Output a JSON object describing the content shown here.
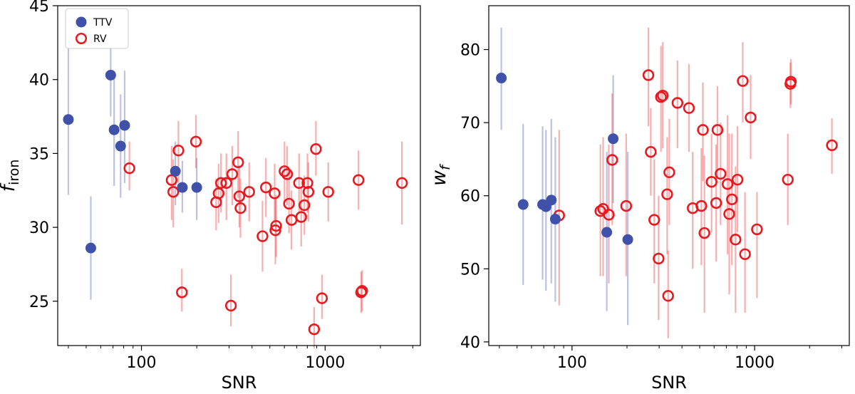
{
  "chart_data": [
    {
      "type": "scatter",
      "xscale": "log",
      "xlim": [
        35,
        3300
      ],
      "ylim": [
        22,
        45
      ],
      "xlabel": "SNR",
      "ylabel": "f_iron",
      "ylabel_main": "f",
      "ylabel_sub": "iron",
      "xticks": [
        100,
        1000
      ],
      "xtick_labels": [
        "100",
        "1000"
      ],
      "yticks": [
        25,
        30,
        35,
        40,
        45
      ],
      "ytick_labels": [
        "25",
        "30",
        "35",
        "40",
        "45"
      ],
      "legend": {
        "placement": "top-left",
        "entries": [
          "TTV",
          "RV"
        ]
      },
      "series": [
        {
          "name": "TTV",
          "marker": "filled-circle",
          "color": "#3f51a8",
          "points": [
            {
              "x": 40,
              "y": 37.3,
              "lo": 32.2,
              "hi": 42.5
            },
            {
              "x": 53,
              "y": 28.6,
              "lo": 25.1,
              "hi": 32.1
            },
            {
              "x": 68,
              "y": 40.3,
              "lo": 37.5,
              "hi": 43.0
            },
            {
              "x": 71,
              "y": 36.6,
              "lo": 32.8,
              "hi": 40.5
            },
            {
              "x": 77,
              "y": 35.5,
              "lo": 32.0,
              "hi": 39.0
            },
            {
              "x": 81,
              "y": 36.9,
              "lo": 33.0,
              "hi": 40.6
            },
            {
              "x": 153,
              "y": 33.8,
              "lo": 31.5,
              "hi": 35.8
            },
            {
              "x": 167,
              "y": 32.7,
              "lo": 31.0,
              "hi": 34.5
            },
            {
              "x": 200,
              "y": 32.7,
              "lo": 30.5,
              "hi": 34.7
            }
          ]
        },
        {
          "name": "RV",
          "marker": "open-circle",
          "color": "#e8191e",
          "points": [
            {
              "x": 86,
              "y": 34.0,
              "lo": 32.5,
              "hi": 35.8
            },
            {
              "x": 146,
              "y": 33.2,
              "lo": 30.5,
              "hi": 35.5
            },
            {
              "x": 149,
              "y": 32.4,
              "lo": 30.0,
              "hi": 34.6
            },
            {
              "x": 159,
              "y": 35.2,
              "lo": 33.0,
              "hi": 37.2
            },
            {
              "x": 166,
              "y": 25.6,
              "lo": 24.3,
              "hi": 27.2
            },
            {
              "x": 198,
              "y": 35.8,
              "lo": 34.0,
              "hi": 37.6
            },
            {
              "x": 255,
              "y": 31.7,
              "lo": 29.8,
              "hi": 33.3
            },
            {
              "x": 263,
              "y": 32.3,
              "lo": 30.3,
              "hi": 34.3
            },
            {
              "x": 271,
              "y": 33.0,
              "lo": 31.0,
              "hi": 35.0
            },
            {
              "x": 290,
              "y": 33.0,
              "lo": 30.5,
              "hi": 35.0
            },
            {
              "x": 307,
              "y": 24.7,
              "lo": 23.3,
              "hi": 26.8
            },
            {
              "x": 312,
              "y": 33.6,
              "lo": 31.5,
              "hi": 35.5
            },
            {
              "x": 336,
              "y": 34.4,
              "lo": 32.0,
              "hi": 36.5
            },
            {
              "x": 341,
              "y": 32.1,
              "lo": 30.0,
              "hi": 34.2
            },
            {
              "x": 346,
              "y": 31.3,
              "lo": 29.3,
              "hi": 33.3
            },
            {
              "x": 386,
              "y": 32.4,
              "lo": 30.4,
              "hi": 34.4
            },
            {
              "x": 456,
              "y": 29.4,
              "lo": 27.0,
              "hi": 31.8
            },
            {
              "x": 476,
              "y": 32.7,
              "lo": 30.7,
              "hi": 34.7
            },
            {
              "x": 531,
              "y": 32.3,
              "lo": 30.3,
              "hi": 34.3
            },
            {
              "x": 536,
              "y": 29.8,
              "lo": 27.5,
              "hi": 32.0
            },
            {
              "x": 541,
              "y": 30.1,
              "lo": 28.0,
              "hi": 32.2
            },
            {
              "x": 601,
              "y": 33.8,
              "lo": 31.7,
              "hi": 35.8
            },
            {
              "x": 621,
              "y": 33.6,
              "lo": 31.5,
              "hi": 35.5
            },
            {
              "x": 636,
              "y": 31.6,
              "lo": 29.6,
              "hi": 33.6
            },
            {
              "x": 656,
              "y": 30.5,
              "lo": 28.5,
              "hi": 32.5
            },
            {
              "x": 721,
              "y": 33.0,
              "lo": 31.0,
              "hi": 35.0
            },
            {
              "x": 741,
              "y": 30.7,
              "lo": 28.7,
              "hi": 32.7
            },
            {
              "x": 771,
              "y": 31.5,
              "lo": 29.5,
              "hi": 33.5
            },
            {
              "x": 801,
              "y": 33.0,
              "lo": 31.0,
              "hi": 35.0
            },
            {
              "x": 811,
              "y": 32.4,
              "lo": 30.4,
              "hi": 34.4
            },
            {
              "x": 871,
              "y": 23.1,
              "lo": 21.8,
              "hi": 24.6
            },
            {
              "x": 891,
              "y": 35.3,
              "lo": 33.5,
              "hi": 37.2
            },
            {
              "x": 961,
              "y": 25.2,
              "lo": 23.8,
              "hi": 26.8
            },
            {
              "x": 1040,
              "y": 32.4,
              "lo": 30.4,
              "hi": 34.4
            },
            {
              "x": 1520,
              "y": 33.2,
              "lo": 31.2,
              "hi": 35.2
            },
            {
              "x": 1570,
              "y": 25.6,
              "lo": 24.2,
              "hi": 27.0
            },
            {
              "x": 1590,
              "y": 25.7,
              "lo": 24.3,
              "hi": 27.1
            },
            {
              "x": 2620,
              "y": 33.0,
              "lo": 30.2,
              "hi": 35.8
            }
          ]
        }
      ]
    },
    {
      "type": "scatter",
      "xscale": "log",
      "xlim": [
        35,
        3300
      ],
      "ylim": [
        39.5,
        86
      ],
      "xlabel": "SNR",
      "ylabel": "w_f",
      "ylabel_main": "w",
      "ylabel_sub": "f",
      "xticks": [
        100,
        1000
      ],
      "xtick_labels": [
        "100",
        "1000"
      ],
      "yticks": [
        40,
        50,
        60,
        70,
        80
      ],
      "ytick_labels": [
        "40",
        "50",
        "60",
        "70",
        "80"
      ],
      "series": [
        {
          "name": "TTV",
          "marker": "filled-circle",
          "color": "#3f51a8",
          "points": [
            {
              "x": 41,
              "y": 76.1,
              "lo": 69.0,
              "hi": 83.0
            },
            {
              "x": 54,
              "y": 58.8,
              "lo": 47.8,
              "hi": 69.8
            },
            {
              "x": 69,
              "y": 58.8,
              "lo": 48.5,
              "hi": 69.5
            },
            {
              "x": 72,
              "y": 58.5,
              "lo": 47.0,
              "hi": 69.0
            },
            {
              "x": 77,
              "y": 59.4,
              "lo": 48.0,
              "hi": 70.5
            },
            {
              "x": 81,
              "y": 56.8,
              "lo": 45.5,
              "hi": 68.0
            },
            {
              "x": 155,
              "y": 55.0,
              "lo": 44.2,
              "hi": 66.0
            },
            {
              "x": 168,
              "y": 67.8,
              "lo": 59.0,
              "hi": 76.5
            },
            {
              "x": 202,
              "y": 54.0,
              "lo": 42.3,
              "hi": 66.0
            }
          ]
        },
        {
          "name": "RV",
          "marker": "open-circle",
          "color": "#e8191e",
          "points": [
            {
              "x": 85,
              "y": 57.3,
              "lo": 45.0,
              "hi": 69.0
            },
            {
              "x": 143,
              "y": 57.9,
              "lo": 49.0,
              "hi": 67.0
            },
            {
              "x": 148,
              "y": 58.2,
              "lo": 49.0,
              "hi": 68.0
            },
            {
              "x": 159,
              "y": 57.4,
              "lo": 48.0,
              "hi": 67.0
            },
            {
              "x": 166,
              "y": 64.9,
              "lo": 56.0,
              "hi": 74.0
            },
            {
              "x": 198,
              "y": 58.6,
              "lo": 49.0,
              "hi": 68.5
            },
            {
              "x": 262,
              "y": 76.5,
              "lo": 69.5,
              "hi": 83.0
            },
            {
              "x": 270,
              "y": 66.0,
              "lo": 60.0,
              "hi": 72.0
            },
            {
              "x": 282,
              "y": 56.7,
              "lo": 48.0,
              "hi": 65.0
            },
            {
              "x": 298,
              "y": 51.4,
              "lo": 43.0,
              "hi": 60.0
            },
            {
              "x": 307,
              "y": 73.5,
              "lo": 66.0,
              "hi": 80.5
            },
            {
              "x": 314,
              "y": 73.7,
              "lo": 66.5,
              "hi": 81.0
            },
            {
              "x": 332,
              "y": 60.2,
              "lo": 52.0,
              "hi": 68.0
            },
            {
              "x": 336,
              "y": 46.3,
              "lo": 40.5,
              "hi": 52.5
            },
            {
              "x": 341,
              "y": 63.2,
              "lo": 56.0,
              "hi": 70.5
            },
            {
              "x": 378,
              "y": 72.7,
              "lo": 66.5,
              "hi": 78.5
            },
            {
              "x": 437,
              "y": 72.0,
              "lo": 66.0,
              "hi": 78.0
            },
            {
              "x": 458,
              "y": 58.3,
              "lo": 50.0,
              "hi": 66.0
            },
            {
              "x": 511,
              "y": 58.6,
              "lo": 50.5,
              "hi": 66.5
            },
            {
              "x": 521,
              "y": 69.0,
              "lo": 62.0,
              "hi": 75.5
            },
            {
              "x": 531,
              "y": 54.9,
              "lo": 44.0,
              "hi": 65.5
            },
            {
              "x": 581,
              "y": 61.9,
              "lo": 55.0,
              "hi": 68.5
            },
            {
              "x": 616,
              "y": 59.0,
              "lo": 51.0,
              "hi": 67.0
            },
            {
              "x": 626,
              "y": 69.0,
              "lo": 62.5,
              "hi": 75.0
            },
            {
              "x": 651,
              "y": 63.0,
              "lo": 56.0,
              "hi": 70.0
            },
            {
              "x": 711,
              "y": 61.6,
              "lo": 52.0,
              "hi": 71.0
            },
            {
              "x": 726,
              "y": 57.5,
              "lo": 46.5,
              "hi": 68.5
            },
            {
              "x": 751,
              "y": 59.5,
              "lo": 50.5,
              "hi": 68.5
            },
            {
              "x": 786,
              "y": 54.0,
              "lo": 44.0,
              "hi": 64.0
            },
            {
              "x": 806,
              "y": 62.2,
              "lo": 55.0,
              "hi": 69.5
            },
            {
              "x": 861,
              "y": 75.7,
              "lo": 70.0,
              "hi": 81.0
            },
            {
              "x": 886,
              "y": 52.0,
              "lo": 44.0,
              "hi": 60.5
            },
            {
              "x": 951,
              "y": 70.7,
              "lo": 65.0,
              "hi": 76.5
            },
            {
              "x": 1030,
              "y": 55.4,
              "lo": 46.0,
              "hi": 60.5
            },
            {
              "x": 1520,
              "y": 62.2,
              "lo": 56.0,
              "hi": 68.5
            },
            {
              "x": 1570,
              "y": 75.3,
              "lo": 72.0,
              "hi": 78.2
            },
            {
              "x": 1580,
              "y": 75.6,
              "lo": 72.5,
              "hi": 78.7
            },
            {
              "x": 2650,
              "y": 66.9,
              "lo": 63.0,
              "hi": 70.6
            }
          ]
        }
      ]
    }
  ]
}
